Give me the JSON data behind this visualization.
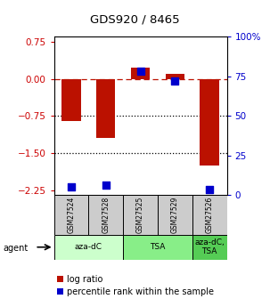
{
  "title": "GDS920 / 8465",
  "samples": [
    "GSM27524",
    "GSM27528",
    "GSM27525",
    "GSM27529",
    "GSM27526"
  ],
  "log_ratios": [
    -0.85,
    -1.2,
    0.22,
    0.1,
    -1.75
  ],
  "percentile_ranks": [
    5.0,
    6.0,
    78.0,
    72.0,
    3.5
  ],
  "agent_groups": [
    {
      "label": "aza-dC",
      "start": 0,
      "end": 2,
      "color": "#ccffcc"
    },
    {
      "label": "TSA",
      "start": 2,
      "end": 4,
      "color": "#88ee88"
    },
    {
      "label": "aza-dC,\nTSA",
      "start": 4,
      "end": 5,
      "color": "#55cc55"
    }
  ],
  "ylim": [
    -2.35,
    0.85
  ],
  "yticks_left": [
    0.75,
    0.0,
    -0.75,
    -1.5,
    -2.25
  ],
  "yticks_right": [
    100,
    75,
    50,
    25,
    0
  ],
  "hlines": [
    0.0,
    -0.75,
    -1.5
  ],
  "hline_styles": [
    "dashed",
    "dotted",
    "dotted"
  ],
  "bar_color": "#bb1100",
  "dot_color": "#0000cc",
  "bar_width": 0.55,
  "dot_size": 28,
  "background_color": "#ffffff",
  "plot_bg": "#ffffff",
  "left_label_color": "#cc0000",
  "right_label_color": "#0000cc",
  "sample_bg": "#cccccc",
  "legend_red_label": "log ratio",
  "legend_blue_label": "percentile rank within the sample"
}
